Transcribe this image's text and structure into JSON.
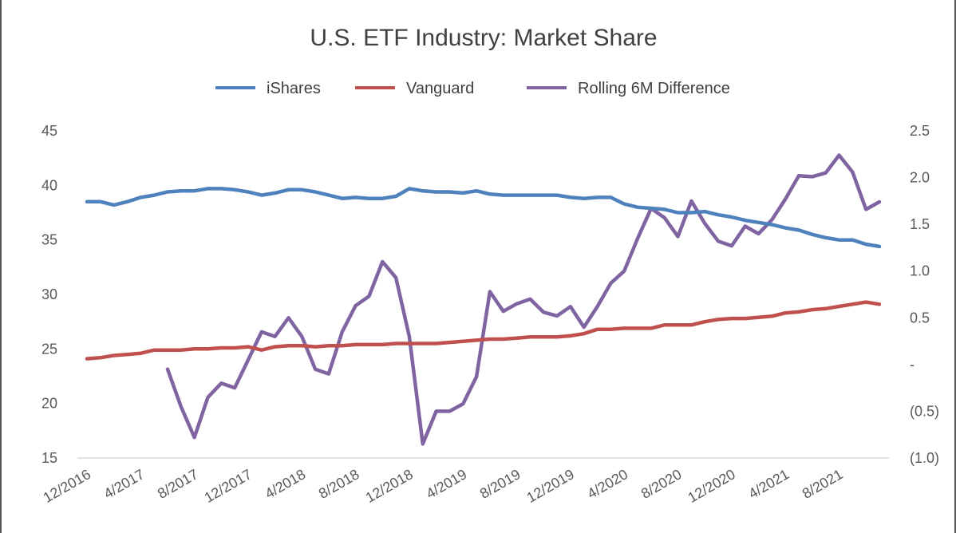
{
  "chart_data": {
    "type": "line",
    "title": "U.S. ETF Industry: Market Share",
    "legend_position": "top",
    "grid": false,
    "left_axis": {
      "range": [
        15,
        45
      ],
      "ticks": [
        "15",
        "20",
        "25",
        "30",
        "35",
        "40",
        "45"
      ]
    },
    "right_axis": {
      "range": [
        -1.0,
        2.5
      ],
      "ticks": [
        "(1.0)",
        "(0.5)",
        "-",
        "0.5",
        "1.0",
        "1.5",
        "2.0",
        "2.5"
      ]
    },
    "x_tick_labels": [
      "12/2016",
      "4/2017",
      "8/2017",
      "12/2017",
      "4/2018",
      "8/2018",
      "12/2018",
      "4/2019",
      "8/2019",
      "12/2019",
      "4/2020",
      "8/2020",
      "12/2020",
      "4/2021",
      "8/2021"
    ],
    "x": [
      "12/2016",
      "1/2017",
      "2/2017",
      "3/2017",
      "4/2017",
      "5/2017",
      "6/2017",
      "7/2017",
      "8/2017",
      "9/2017",
      "10/2017",
      "11/2017",
      "12/2017",
      "1/2018",
      "2/2018",
      "3/2018",
      "4/2018",
      "5/2018",
      "6/2018",
      "7/2018",
      "8/2018",
      "9/2018",
      "10/2018",
      "11/2018",
      "12/2018",
      "1/2019",
      "2/2019",
      "3/2019",
      "4/2019",
      "5/2019",
      "6/2019",
      "7/2019",
      "8/2019",
      "9/2019",
      "10/2019",
      "11/2019",
      "12/2019",
      "1/2020",
      "2/2020",
      "3/2020",
      "4/2020",
      "5/2020",
      "6/2020",
      "7/2020",
      "8/2020",
      "9/2020",
      "10/2020",
      "11/2020",
      "12/2020",
      "1/2021",
      "2/2021",
      "3/2021",
      "4/2021",
      "5/2021",
      "6/2021",
      "7/2021",
      "8/2021",
      "9/2021",
      "10/2021",
      "11/2021"
    ],
    "series": [
      {
        "name": "iShares",
        "color": "#4f81bd",
        "axis": "left",
        "values": [
          38.5,
          38.5,
          38.2,
          38.5,
          38.9,
          39.1,
          39.4,
          39.5,
          39.5,
          39.7,
          39.7,
          39.6,
          39.4,
          39.1,
          39.3,
          39.6,
          39.6,
          39.4,
          39.1,
          38.8,
          38.9,
          38.8,
          38.8,
          39.0,
          39.7,
          39.5,
          39.4,
          39.4,
          39.3,
          39.5,
          39.2,
          39.1,
          39.1,
          39.1,
          39.1,
          39.1,
          38.9,
          38.8,
          38.9,
          38.9,
          38.3,
          38.0,
          37.9,
          37.8,
          37.5,
          37.5,
          37.6,
          37.3,
          37.1,
          36.8,
          36.6,
          36.4,
          36.1,
          35.9,
          35.5,
          35.2,
          35.0,
          35.0,
          34.6,
          34.4
        ]
      },
      {
        "name": "Vanguard",
        "color": "#c0504d",
        "axis": "left",
        "values": [
          24.1,
          24.2,
          24.4,
          24.5,
          24.6,
          24.9,
          24.9,
          24.9,
          25.0,
          25.0,
          25.1,
          25.1,
          25.2,
          24.9,
          25.2,
          25.3,
          25.3,
          25.2,
          25.3,
          25.3,
          25.4,
          25.4,
          25.4,
          25.5,
          25.5,
          25.5,
          25.5,
          25.6,
          25.7,
          25.8,
          25.9,
          25.9,
          26.0,
          26.1,
          26.1,
          26.1,
          26.2,
          26.4,
          26.8,
          26.8,
          26.9,
          26.9,
          26.9,
          27.2,
          27.2,
          27.2,
          27.5,
          27.7,
          27.8,
          27.8,
          27.9,
          28.0,
          28.3,
          28.4,
          28.6,
          28.7,
          28.9,
          29.1,
          29.3,
          29.1
        ]
      },
      {
        "name": "Rolling 6M Difference",
        "color": "#8064a2",
        "axis": "right",
        "values": [
          null,
          null,
          null,
          null,
          null,
          null,
          -0.05,
          -0.45,
          -0.78,
          -0.35,
          -0.2,
          -0.25,
          0.05,
          0.35,
          0.3,
          0.5,
          0.3,
          -0.05,
          -0.1,
          0.35,
          0.63,
          0.73,
          1.1,
          0.93,
          0.3,
          -0.85,
          -0.5,
          -0.5,
          -0.42,
          -0.13,
          0.78,
          0.57,
          0.65,
          0.7,
          0.56,
          0.52,
          0.62,
          0.4,
          0.62,
          0.87,
          1.0,
          1.35,
          1.67,
          1.57,
          1.37,
          1.75,
          1.51,
          1.32,
          1.27,
          1.48,
          1.4,
          1.55,
          1.77,
          2.02,
          2.01,
          2.05,
          2.24,
          2.06,
          1.66,
          1.74
        ]
      }
    ]
  }
}
